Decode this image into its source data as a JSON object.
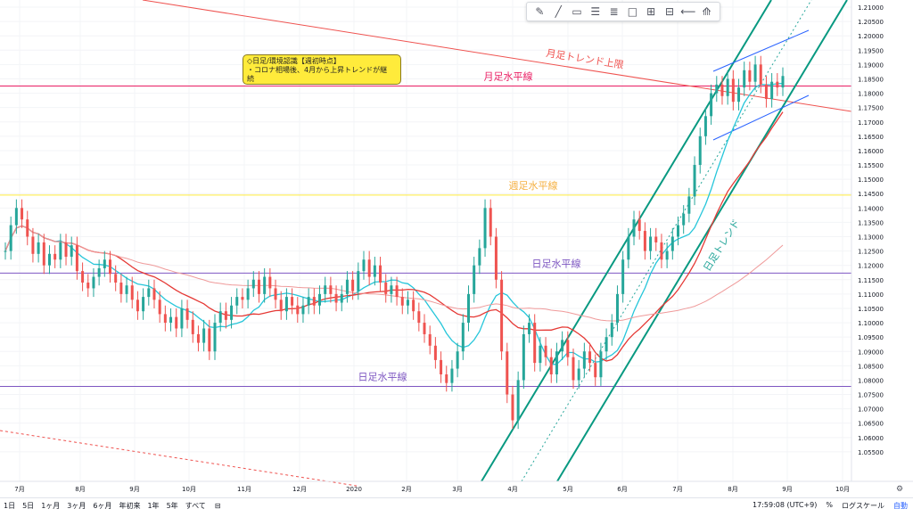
{
  "toolbar": {
    "tools": [
      {
        "icon": "cursor-pen-icon",
        "glyph": "✎"
      },
      {
        "icon": "trend-line-icon",
        "glyph": "╱"
      },
      {
        "icon": "callout-icon",
        "glyph": "▭"
      },
      {
        "icon": "horizontal-lines-icon",
        "glyph": "☰"
      },
      {
        "icon": "fib-icon",
        "glyph": "≣"
      },
      {
        "icon": "rectangle-icon",
        "glyph": "□"
      },
      {
        "icon": "range-icon",
        "glyph": "⊞"
      },
      {
        "icon": "measure-icon",
        "glyph": "⊟"
      },
      {
        "icon": "arrow-icon",
        "glyph": "⟵"
      },
      {
        "icon": "magnet-icon",
        "glyph": "⟰"
      }
    ]
  },
  "note": {
    "line1": "◇日足/環境認識【週初時点】",
    "line2": "・コロナ相場後、4月から上昇トレンドが継",
    "line3": "続"
  },
  "bottom_bar": {
    "ranges": [
      "1日",
      "5日",
      "1ヶ月",
      "3ヶ月",
      "6ヶ月",
      "年初来",
      "1年",
      "5年",
      "すべて"
    ],
    "time": "17:59:08 (UTC+9)",
    "percent": "%",
    "log": "ログスケール",
    "auto": "自動"
  },
  "chart_data": {
    "type": "candlestick",
    "y_axis": {
      "range": [
        1.05,
        1.21
      ],
      "ticks": [
        "1.21000",
        "1.20500",
        "1.20000",
        "1.19500",
        "1.19000",
        "1.18500",
        "1.18000",
        "1.17500",
        "1.17000",
        "1.16500",
        "1.16000",
        "1.15500",
        "1.15000",
        "1.14500",
        "1.14000",
        "1.13500",
        "1.13000",
        "1.12500",
        "1.12000",
        "1.11500",
        "1.11000",
        "1.10500",
        "1.10000",
        "1.09500",
        "1.09000",
        "1.08500",
        "1.08000",
        "1.07500",
        "1.07000",
        "1.06500",
        "1.06000",
        "1.05500"
      ]
    },
    "x_axis": {
      "months": [
        "7月",
        "8月",
        "9月",
        "10月",
        "11月",
        "12月",
        "2020",
        "2月",
        "3月",
        "4月",
        "5月",
        "6月",
        "7月",
        "8月",
        "9月",
        "10月"
      ]
    },
    "horizontal_levels": [
      {
        "label": "月足水平線",
        "value": 1.1825,
        "color": "#e91e63"
      },
      {
        "label": "週足水平線",
        "value": 1.1445,
        "color": "#ffeb3b",
        "label_color": "#f5b041"
      },
      {
        "label": "日足水平線",
        "value": 1.1173,
        "color": "#7e57c2"
      },
      {
        "label": "日足水平線",
        "value": 1.0778,
        "color": "#7e57c2"
      }
    ],
    "annotations": {
      "monthly_trend": "月足トレンド上限",
      "daily_trend": "日足トレンド"
    },
    "closes": [
      1.125,
      1.134,
      1.14,
      1.136,
      1.13,
      1.124,
      1.128,
      1.12,
      1.124,
      1.122,
      1.128,
      1.123,
      1.127,
      1.118,
      1.114,
      1.112,
      1.116,
      1.119,
      1.122,
      1.117,
      1.114,
      1.11,
      1.113,
      1.108,
      1.104,
      1.109,
      1.112,
      1.108,
      1.103,
      1.1,
      1.102,
      1.098,
      1.105,
      1.101,
      1.096,
      1.093,
      1.098,
      1.09,
      1.1,
      1.104,
      1.101,
      1.106,
      1.109,
      1.108,
      1.112,
      1.115,
      1.11,
      1.116,
      1.112,
      1.108,
      1.104,
      1.109,
      1.106,
      1.103,
      1.106,
      1.109,
      1.106,
      1.11,
      1.113,
      1.11,
      1.107,
      1.11,
      1.115,
      1.111,
      1.118,
      1.122,
      1.116,
      1.12,
      1.114,
      1.11,
      1.113,
      1.109,
      1.106,
      1.108,
      1.104,
      1.1,
      1.096,
      1.092,
      1.087,
      1.082,
      1.079,
      1.084,
      1.09,
      1.1,
      1.11,
      1.12,
      1.126,
      1.14,
      1.13,
      1.115,
      1.09,
      1.075,
      1.066,
      1.08,
      1.096,
      1.1,
      1.086,
      1.092,
      1.088,
      1.082,
      1.09,
      1.094,
      1.088,
      1.08,
      1.084,
      1.09,
      1.086,
      1.081,
      1.09,
      1.095,
      1.1,
      1.11,
      1.122,
      1.13,
      1.136,
      1.132,
      1.125,
      1.13,
      1.128,
      1.122,
      1.125,
      1.13,
      1.134,
      1.138,
      1.144,
      1.155,
      1.165,
      1.172,
      1.18,
      1.183,
      1.179,
      1.185,
      1.177,
      1.182,
      1.188,
      1.184,
      1.19,
      1.183,
      1.178,
      1.184,
      1.182,
      1.186
    ]
  }
}
